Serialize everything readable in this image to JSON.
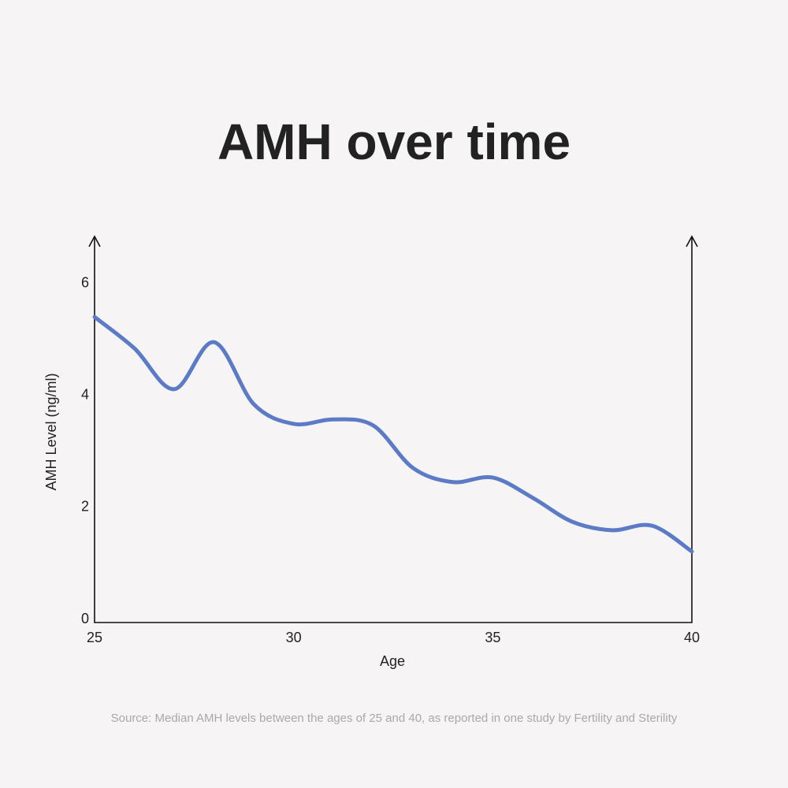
{
  "chart_data": {
    "type": "line",
    "title": "AMH over time",
    "x_label": "Age",
    "y_label": "AMH Level (ng/ml)",
    "source": "Source: Median AMH levels between the ages of 25 and 40, as reported in one study by Fertility and Sterility",
    "x": [
      25,
      26,
      27,
      28,
      29,
      30,
      31,
      32,
      33,
      34,
      35,
      36,
      37,
      38,
      39,
      40
    ],
    "series": [
      {
        "color": "#5b7bc7",
        "values": [
          5.46,
          4.9,
          4.17,
          5.01,
          3.9,
          3.55,
          3.63,
          3.52,
          2.76,
          2.51,
          2.59,
          2.23,
          1.8,
          1.65,
          1.73,
          1.27
        ]
      }
    ],
    "xlim": [
      25,
      40
    ],
    "xticks": [
      25,
      30,
      35,
      40
    ],
    "ylim": [
      0,
      6.9
    ],
    "yticks": [
      0,
      2,
      4,
      6
    ]
  }
}
